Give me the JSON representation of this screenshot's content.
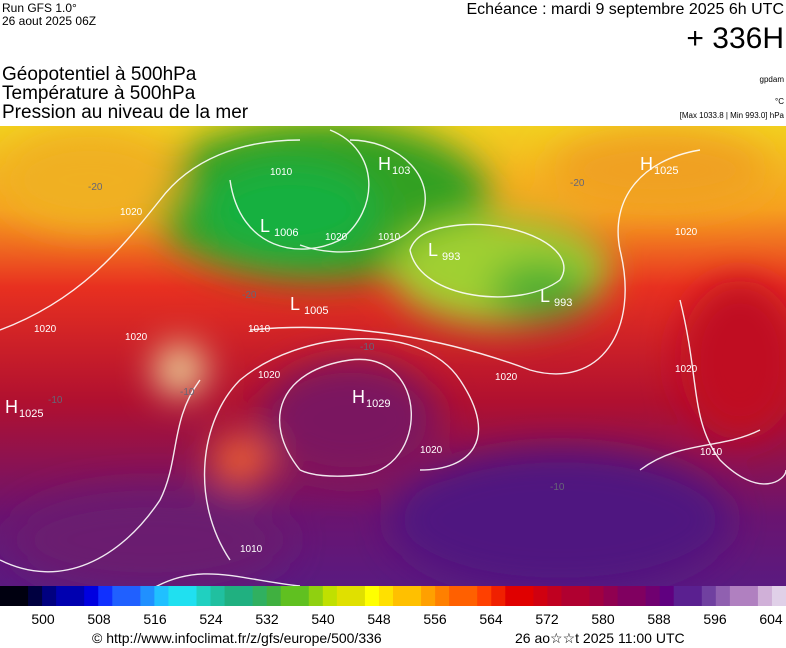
{
  "header": {
    "run": "Run GFS 1.0°",
    "date": "26 aout 2025 06Z",
    "echeance": "Echéance : mardi 9 septembre 2025 6h UTC",
    "lead": "+ 336H"
  },
  "titles": [
    "Géopotentiel à 500hPa",
    "Température à 500hPa",
    "Pression au niveau de la mer"
  ],
  "units": [
    "gpdam",
    "°C"
  ],
  "range_note": "[Max 1033.8 | Min 993.0] hPa",
  "pressure_centers": [
    {
      "type": "H",
      "value": 1025
    },
    {
      "type": "L",
      "value": 1006
    },
    {
      "type": "H",
      "value": 103
    },
    {
      "type": "L",
      "value": 993
    },
    {
      "type": "L",
      "value": 993
    },
    {
      "type": "L",
      "value": 1005
    },
    {
      "type": "H",
      "value": 1029
    },
    {
      "type": "H",
      "value": 1025
    }
  ],
  "contour_labels": [
    1010,
    1020,
    1020,
    1020,
    1010,
    1020,
    1010,
    1010,
    1020,
    1020,
    1020,
    1020,
    1010,
    1020
  ],
  "temp_labels": [
    -20,
    -20,
    -20,
    -10,
    -10,
    -10,
    -10
  ],
  "colorbar": {
    "ticks": [
      500,
      508,
      516,
      524,
      532,
      540,
      548,
      556,
      564,
      572,
      580,
      588,
      596,
      604
    ]
  },
  "footer": {
    "url": "© http://www.infoclimat.fr/z/gfs/europe/500/336",
    "timestamp": "26 ao☆☆t 2025 11:00 UTC"
  }
}
